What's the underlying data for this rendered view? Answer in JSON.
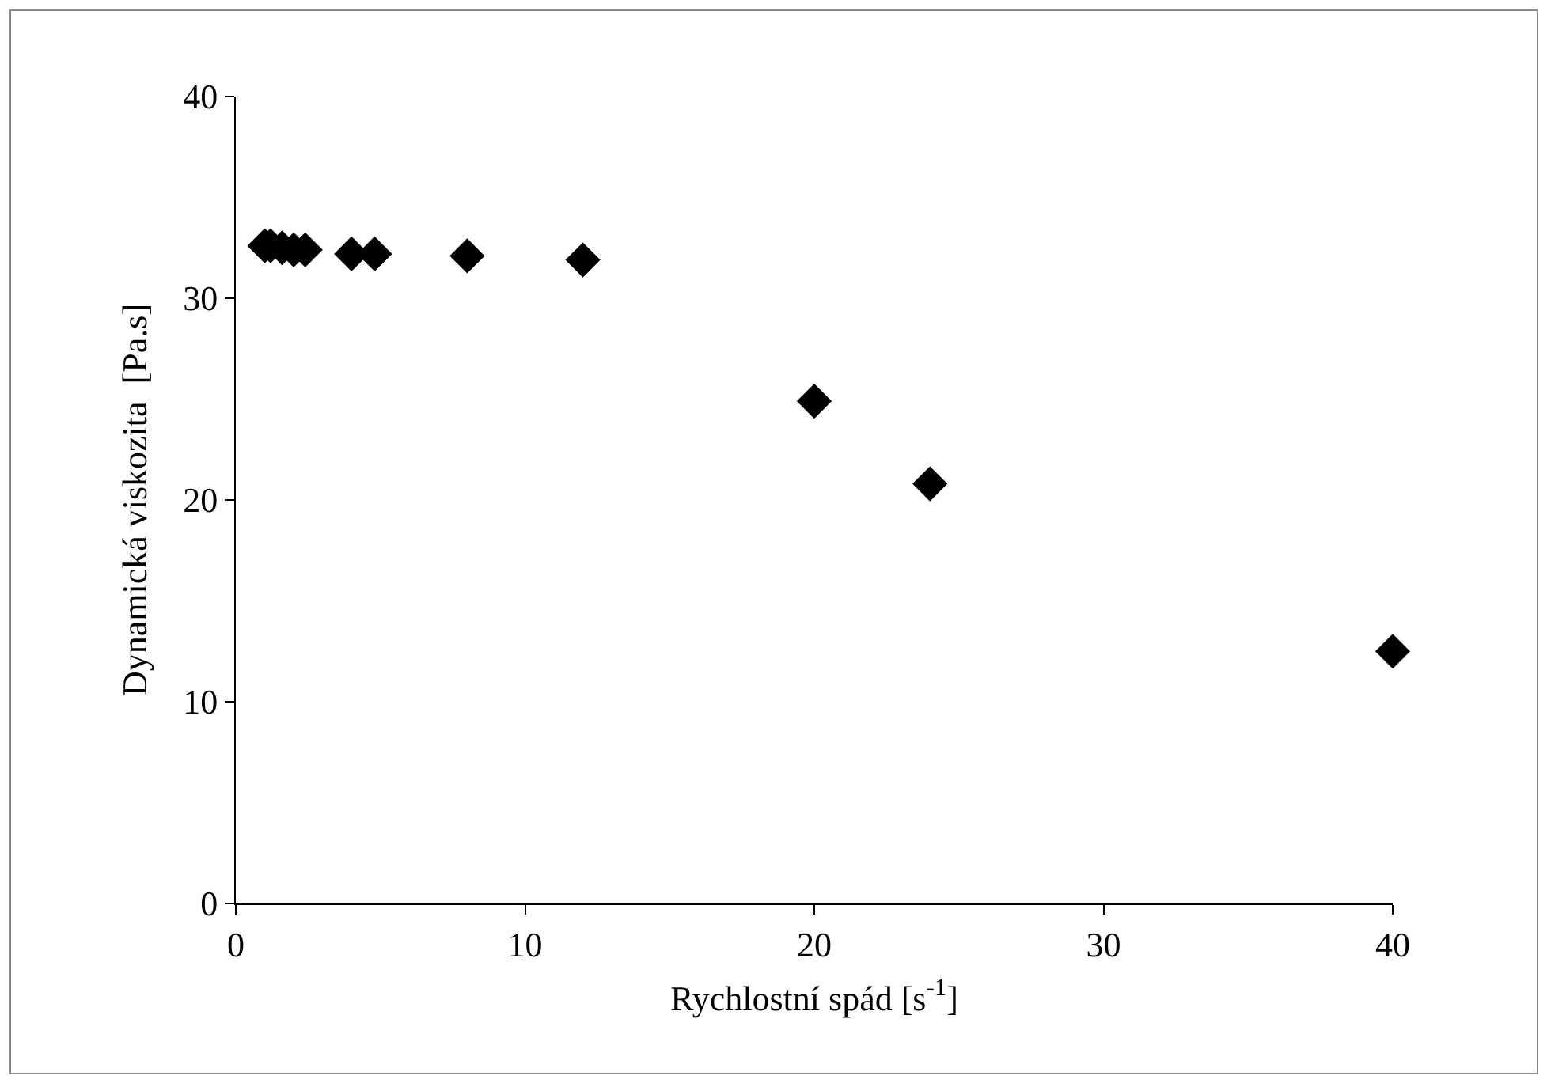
{
  "chart_data": {
    "type": "scatter",
    "xlabel": "Rychlostní spád [s$^{-1}$]",
    "ylabel": "Dynamická viskozita  [Pa.s]",
    "x": [
      1,
      1.2,
      1.6,
      2,
      2.4,
      4,
      4.8,
      8,
      12,
      20,
      24,
      40
    ],
    "values": [
      32.6,
      32.6,
      32.5,
      32.4,
      32.4,
      32.2,
      32.2,
      32.1,
      31.9,
      24.9,
      20.8,
      12.5
    ],
    "color": "#000000",
    "marker": "diamond",
    "xlim": [
      0,
      40
    ],
    "xticks": [
      0,
      10,
      20,
      30,
      40
    ],
    "ylim": [
      0,
      40
    ],
    "yticks": [
      0,
      10,
      20,
      30,
      40
    ],
    "grid": false,
    "legend": false
  }
}
